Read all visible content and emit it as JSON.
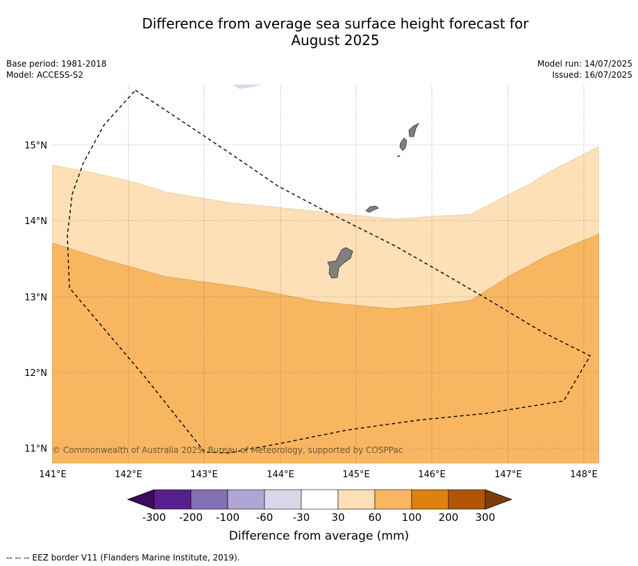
{
  "title_line1": "Difference from average sea surface height forecast for",
  "title_line2": "August 2025",
  "meta_left": [
    "Base period: 1981-2018",
    "Model: ACCESS-S2"
  ],
  "meta_right": [
    "Model run: 14/07/2025",
    "Issued: 16/07/2025"
  ],
  "lat_labels": [
    "15°N",
    "14°N",
    "13°N",
    "12°N",
    "11°N"
  ],
  "lon_labels": [
    "141°E",
    "142°E",
    "143°E",
    "144°E",
    "145°E",
    "146°E",
    "147°E",
    "148°E"
  ],
  "copyright": "© Commonwealth of Australia 2025, Bureau of Meteorology, supported by COSPPac",
  "colorbar": {
    "ticks": [
      "-300",
      "-200",
      "-100",
      "-60",
      "-30",
      "30",
      "60",
      "100",
      "200",
      "300"
    ],
    "colors": [
      "#3b0b5c",
      "#58208e",
      "#8270b2",
      "#b0a6d4",
      "#d8d8ea",
      "#ffffff",
      "#fde0b6",
      "#f9b660",
      "#e0810f",
      "#b25605",
      "#7f3b08"
    ],
    "label": "Difference from average (mm)"
  },
  "footer": "--  --  -- EEZ border V11 (Flanders Marine Institute, 2019)."
}
